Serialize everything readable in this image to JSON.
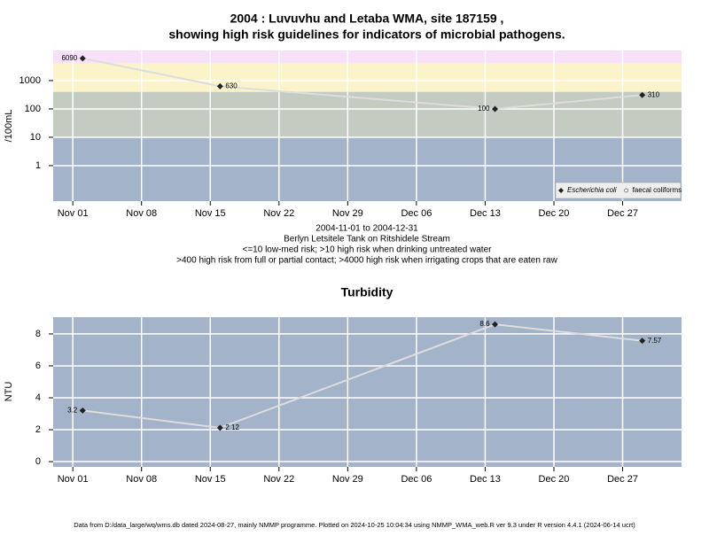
{
  "chart_data": [
    {
      "type": "line",
      "title": [
        "2004 : Luvuvhu and Letaba WMA, site 187159 ,",
        "showing high risk guidelines for indicators of microbial pathogens."
      ],
      "subtitle": [
        "2004-11-01 to 2004-12-31",
        "Berlyn Letsitele Tank on Ritshidele Stream",
        "<=10 low-med risk; >10 high risk when drinking untreated water",
        ">400 high risk from full or partial contact; >4000 high risk when irrigating crops that are eaten raw"
      ],
      "y_label": "/100mL",
      "log_scale": true,
      "x": [
        "2004-11-02",
        "2004-11-16",
        "2004-12-14",
        "2004-12-29"
      ],
      "xlim": [
        "2004-10-30",
        "2005-01-02"
      ],
      "xticks": [
        {
          "value": "2004-11-01",
          "label": "Nov 01"
        },
        {
          "value": "2004-11-08",
          "label": "Nov 08"
        },
        {
          "value": "2004-11-15",
          "label": "Nov 15"
        },
        {
          "value": "2004-11-22",
          "label": "Nov 22"
        },
        {
          "value": "2004-11-29",
          "label": "Nov 29"
        },
        {
          "value": "2004-12-06",
          "label": "Dec 06"
        },
        {
          "value": "2004-12-13",
          "label": "Dec 13"
        },
        {
          "value": "2004-12-20",
          "label": "Dec 20"
        },
        {
          "value": "2004-12-27",
          "label": "Dec 27"
        }
      ],
      "ylim": [
        0.056,
        11500
      ],
      "yticks": [
        1,
        10,
        100,
        1000
      ],
      "band_edges": [
        10,
        400,
        4000
      ],
      "band_colors": [
        "#a3b3c9",
        "#c4cbc0",
        "#faf4c8",
        "#f9e0f9"
      ],
      "grid": true,
      "legend": "bottom right",
      "series": [
        {
          "name": "Escherichia coli",
          "color": "#222222",
          "line_color": "#dddddd",
          "values": [
            6090,
            630,
            100,
            310
          ]
        },
        {
          "name": "faecal coliforms",
          "color": "#ffffff",
          "line_color": "#dddddd",
          "values": [
            null,
            null,
            null,
            null
          ]
        }
      ]
    },
    {
      "type": "line",
      "title": "Turbidity",
      "y_label": "NTU",
      "x": [
        "2004-11-02",
        "2004-11-16",
        "2004-12-14",
        "2004-12-29"
      ],
      "xlim": [
        "2004-10-30",
        "2005-01-02"
      ],
      "xticks": [
        {
          "value": "2004-11-01",
          "label": "Nov 01"
        },
        {
          "value": "2004-11-08",
          "label": "Nov 08"
        },
        {
          "value": "2004-11-15",
          "label": "Nov 15"
        },
        {
          "value": "2004-11-22",
          "label": "Nov 22"
        },
        {
          "value": "2004-11-29",
          "label": "Nov 29"
        },
        {
          "value": "2004-12-06",
          "label": "Dec 06"
        },
        {
          "value": "2004-12-13",
          "label": "Dec 13"
        },
        {
          "value": "2004-12-20",
          "label": "Dec 20"
        },
        {
          "value": "2004-12-27",
          "label": "Dec 27"
        }
      ],
      "ylim": [
        -0.33,
        9.05
      ],
      "yticks": [
        0,
        2,
        4,
        6,
        8
      ],
      "band_colors": [
        "#a3b3c9"
      ],
      "grid": true,
      "series": [
        {
          "color": "#222222",
          "line_color": "#dddddd",
          "values": [
            3.2,
            2.12,
            8.6,
            7.57
          ]
        }
      ]
    }
  ],
  "footer": "Data from D:/data_large/wq/wms.db dated 2024-08-27, mainly NMMP programme. Plotted on 2024-10-25 10:04:34 using NMMP_WMA_web.R ver 9.3 under R version 4.4.1 (2024-06-14 ucrt)"
}
